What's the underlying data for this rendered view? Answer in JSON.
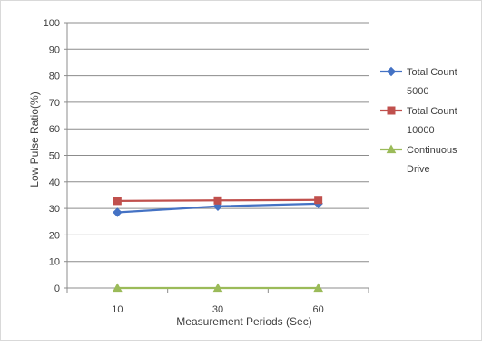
{
  "chart_data": {
    "type": "line",
    "title": "",
    "xlabel": "Measurement Periods (Sec)",
    "ylabel": "Low Pulse Ratio(%)",
    "categories": [
      "10",
      "30",
      "60"
    ],
    "ylim": [
      0,
      100
    ],
    "yticks": [
      0,
      10,
      20,
      30,
      40,
      50,
      60,
      70,
      80,
      90,
      100
    ],
    "grid": "horizontal",
    "legend_position": "right",
    "series": [
      {
        "name": "Total Count 5000",
        "legend_lines": [
          "Total Count",
          "5000"
        ],
        "values": [
          28.5,
          30.8,
          31.8
        ],
        "color": "#4472c4",
        "marker": "diamond"
      },
      {
        "name": "Total Count 10000",
        "legend_lines": [
          "Total Count",
          "10000"
        ],
        "values": [
          32.8,
          33.0,
          33.2
        ],
        "color": "#c0504d",
        "marker": "square"
      },
      {
        "name": "Continuous Drive",
        "legend_lines": [
          "Continuous",
          "Drive"
        ],
        "values": [
          0,
          0,
          0
        ],
        "color": "#9bbb59",
        "marker": "triangle"
      }
    ]
  }
}
